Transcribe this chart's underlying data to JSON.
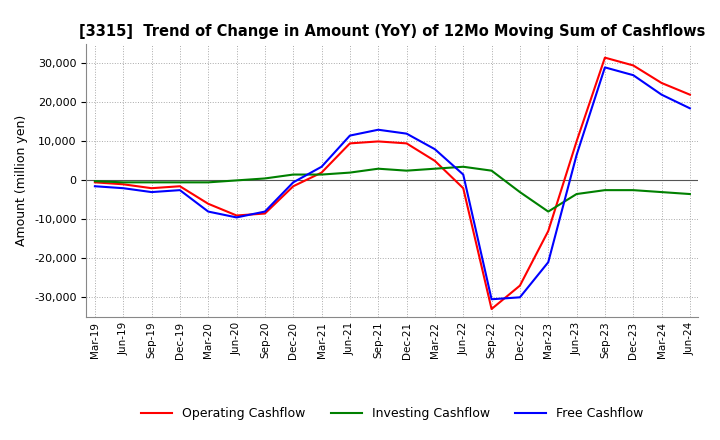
{
  "title": "[3315]  Trend of Change in Amount (YoY) of 12Mo Moving Sum of Cashflows",
  "ylabel": "Amount (million yen)",
  "ylim": [
    -35000,
    35000
  ],
  "yticks": [
    -30000,
    -20000,
    -10000,
    0,
    10000,
    20000,
    30000
  ],
  "x_labels": [
    "Mar-19",
    "Jun-19",
    "Sep-19",
    "Dec-19",
    "Mar-20",
    "Jun-20",
    "Sep-20",
    "Dec-20",
    "Mar-21",
    "Jun-21",
    "Sep-21",
    "Dec-21",
    "Mar-22",
    "Jun-22",
    "Sep-22",
    "Dec-22",
    "Mar-23",
    "Jun-23",
    "Sep-23",
    "Dec-23",
    "Mar-24",
    "Jun-24"
  ],
  "operating": [
    -500,
    -1000,
    -2000,
    -1500,
    -6000,
    -9000,
    -8500,
    -1500,
    2000,
    9500,
    10000,
    9500,
    5000,
    -2000,
    -33000,
    -27000,
    -13000,
    10000,
    31500,
    29500,
    25000,
    22000
  ],
  "investing": [
    -200,
    -500,
    -500,
    -500,
    -500,
    0,
    500,
    1500,
    1500,
    2000,
    3000,
    2500,
    3000,
    3500,
    2500,
    -3000,
    -8000,
    -3500,
    -2500,
    -2500,
    -3000,
    -3500
  ],
  "free": [
    -1500,
    -2000,
    -3000,
    -2500,
    -8000,
    -9500,
    -8000,
    -500,
    3500,
    11500,
    13000,
    12000,
    8000,
    1500,
    -30500,
    -30000,
    -21000,
    6500,
    29000,
    27000,
    22000,
    18500
  ],
  "operating_color": "#ff0000",
  "investing_color": "#008000",
  "free_color": "#0000ff",
  "bg_color": "#ffffff",
  "grid_color": "#aaaaaa"
}
